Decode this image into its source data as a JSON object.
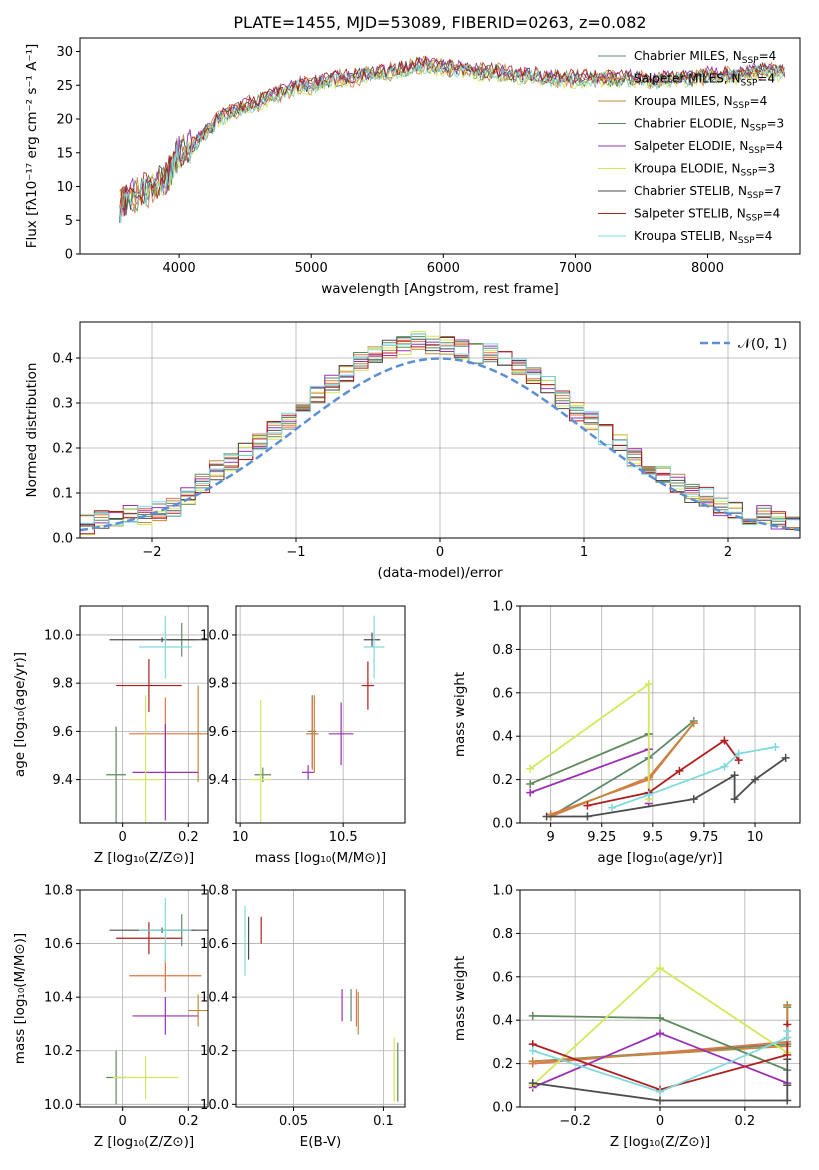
{
  "figure_title": "PLATE=1455, MJD=53089, FIBERID=0263, z=0.082",
  "series": [
    {
      "key": "cm",
      "name": "Chabrier MILES, N",
      "sub": "SSP",
      "suffix": "=4",
      "color": "#5e8a6e"
    },
    {
      "key": "sm",
      "name": "Salpeter MILES, N",
      "sub": "SSP",
      "suffix": "=4",
      "color": "#e57349"
    },
    {
      "key": "km",
      "name": "Kroupa MILES, N",
      "sub": "SSP",
      "suffix": "=4",
      "color": "#c2893e"
    },
    {
      "key": "ce",
      "name": "Chabrier ELODIE, N",
      "sub": "SSP",
      "suffix": "=3",
      "color": "#5f8a5c"
    },
    {
      "key": "se",
      "name": "Salpeter ELODIE, N",
      "sub": "SSP",
      "suffix": "=4",
      "color": "#9b30b5"
    },
    {
      "key": "ke",
      "name": "Kroupa ELODIE, N",
      "sub": "SSP",
      "suffix": "=3",
      "color": "#d4e85c"
    },
    {
      "key": "cs",
      "name": "Chabrier STELIB, N",
      "sub": "SSP",
      "suffix": "=7",
      "color": "#4d4d4d"
    },
    {
      "key": "ss",
      "name": "Salpeter STELIB, N",
      "sub": "SSP",
      "suffix": "=4",
      "color": "#b01e1e"
    },
    {
      "key": "ks",
      "name": "Kroupa STELIB, N",
      "sub": "SSP",
      "suffix": "=4",
      "color": "#7fd9dd"
    }
  ],
  "chart_data": [
    {
      "id": "spectrum",
      "type": "line",
      "xlabel": "wavelength [Angstrom, rest frame]",
      "ylabel": "Flux [fλ10⁻¹⁷ erg cm⁻² s⁻¹ A⁻¹]",
      "xlim": [
        3250,
        8700
      ],
      "ylim": [
        0,
        32
      ],
      "xticks": [
        4000,
        5000,
        6000,
        7000,
        8000
      ],
      "yticks": [
        0,
        5,
        10,
        15,
        20,
        25,
        30
      ],
      "grid": false,
      "legend": "right",
      "x": [
        3550,
        3600,
        3700,
        3800,
        3900,
        3950,
        4000,
        4100,
        4200,
        4300,
        4400,
        4500,
        4600,
        4700,
        4800,
        4900,
        5000,
        5100,
        5200,
        5300,
        5400,
        5500,
        5600,
        5700,
        5800,
        5900,
        6000,
        6100,
        6200,
        6300,
        6400,
        6500,
        6600,
        6700,
        6800,
        6900,
        7000,
        7100,
        7200,
        7300,
        7400,
        7500,
        7600,
        7700,
        7800,
        7900,
        8000,
        8100,
        8200,
        8300,
        8400,
        8500,
        8600
      ],
      "y": [
        7,
        8,
        9,
        10,
        11,
        13,
        15,
        16,
        18,
        20,
        21,
        22,
        22.5,
        23.5,
        24,
        25,
        25,
        25.5,
        26,
        26,
        26.5,
        27,
        27,
        27.5,
        28,
        28,
        27.5,
        27.5,
        27,
        27,
        27,
        26.5,
        26.5,
        26.5,
        26,
        26,
        26,
        26,
        26,
        26,
        26,
        26,
        25.5,
        26,
        26,
        26,
        26.5,
        26.5,
        26.5,
        27,
        27,
        27,
        27
      ]
    },
    {
      "id": "residuals",
      "type": "histogram",
      "xlabel": "(data-model)/error",
      "ylabel": "Normed distribution",
      "xlim": [
        -2.5,
        2.5
      ],
      "ylim": [
        0,
        0.48
      ],
      "xticks": [
        -2,
        -1,
        0,
        1,
        2
      ],
      "yticks": [
        0.0,
        0.1,
        0.2,
        0.3,
        0.4
      ],
      "grid": true,
      "legend": "top-right",
      "reference_label": "𝒩(0, 1)",
      "reference_color": "#5b8fd6",
      "bin_width": 0.1,
      "values": [
        0.03,
        0.04,
        0.04,
        0.05,
        0.05,
        0.06,
        0.07,
        0.09,
        0.12,
        0.15,
        0.17,
        0.19,
        0.21,
        0.24,
        0.26,
        0.29,
        0.32,
        0.34,
        0.37,
        0.39,
        0.41,
        0.42,
        0.43,
        0.44,
        0.43,
        0.43,
        0.42,
        0.41,
        0.41,
        0.4,
        0.38,
        0.36,
        0.34,
        0.31,
        0.28,
        0.26,
        0.23,
        0.21,
        0.18,
        0.16,
        0.14,
        0.12,
        0.1,
        0.09,
        0.07,
        0.06,
        0.05,
        0.05,
        0.04,
        0.03
      ]
    },
    {
      "id": "z-age",
      "type": "errorbar",
      "xlabel": "Z [log₁₀(Z/Z⊙)]",
      "ylabel": "age  [log₁₀(age/yr)]",
      "xlim": [
        -0.13,
        0.26
      ],
      "ylim": [
        9.22,
        10.12
      ],
      "xticks": [
        0.0,
        0.2
      ],
      "yticks": [
        9.4,
        9.6,
        9.8,
        10.0
      ],
      "grid": true,
      "points": [
        {
          "s": "cm",
          "x": 0.18,
          "y": 9.98,
          "xe": 0.04,
          "ye": 0.07
        },
        {
          "s": "sm",
          "x": 0.13,
          "y": 9.59,
          "xe": 0.11,
          "ye": 0.15
        },
        {
          "s": "km",
          "x": 0.23,
          "y": 9.59,
          "xe": 0.03,
          "ye": 0.2
        },
        {
          "s": "ce",
          "x": -0.02,
          "y": 9.42,
          "xe": 0.03,
          "ye": 0.2
        },
        {
          "s": "se",
          "x": 0.13,
          "y": 9.43,
          "xe": 0.1,
          "ye": 0.2
        },
        {
          "s": "ke",
          "x": 0.07,
          "y": 9.4,
          "xe": 0.05,
          "ye": 0.35
        },
        {
          "s": "cs",
          "x": 0.12,
          "y": 9.98,
          "xe": 0.16,
          "ye": 0.01
        },
        {
          "s": "ss",
          "x": 0.08,
          "y": 9.79,
          "xe": 0.1,
          "ye": 0.11
        },
        {
          "s": "ks",
          "x": 0.13,
          "y": 9.95,
          "xe": 0.08,
          "ye": 0.13
        }
      ]
    },
    {
      "id": "mass-age",
      "type": "errorbar",
      "xlabel": "mass [log₁₀(M/M⊙)]",
      "ylabel": "",
      "xlim": [
        9.98,
        10.8
      ],
      "ylim": [
        9.22,
        10.12
      ],
      "xticks": [
        10.0,
        10.5
      ],
      "yticks": [
        9.4,
        9.6,
        9.8,
        10.0
      ],
      "grid": true,
      "points": [
        {
          "s": "cm",
          "x": 10.35,
          "y": 9.6,
          "xe": 0.02,
          "ye": 0.15
        },
        {
          "s": "sm",
          "x": 10.35,
          "y": 9.59,
          "xe": 0.03,
          "ye": 0.15
        },
        {
          "s": "km",
          "x": 10.36,
          "y": 9.59,
          "xe": 0.02,
          "ye": 0.16
        },
        {
          "s": "ce",
          "x": 10.11,
          "y": 9.42,
          "xe": 0.04,
          "ye": 0.03
        },
        {
          "s": "se",
          "x": 10.33,
          "y": 9.43,
          "xe": 0.03,
          "ye": 0.03
        },
        {
          "s": "ke",
          "x": 10.1,
          "y": 9.4,
          "xe": 0.05,
          "ye": 0.33
        },
        {
          "s": "cs",
          "x": 10.64,
          "y": 9.98,
          "xe": 0.04,
          "ye": 0.03
        },
        {
          "s": "ss",
          "x": 10.62,
          "y": 9.79,
          "xe": 0.03,
          "ye": 0.1
        },
        {
          "s": "ks",
          "x": 10.65,
          "y": 9.95,
          "xe": 0.05,
          "ye": 0.13
        },
        {
          "s": "se",
          "x": 10.49,
          "y": 9.59,
          "xe": 0.06,
          "ye": 0.13
        }
      ]
    },
    {
      "id": "age-weight",
      "type": "line",
      "xlabel": "age  [log₁₀(age/yr)]",
      "ylabel": "mass weight",
      "xlim": [
        8.85,
        10.22
      ],
      "ylim": [
        0,
        1
      ],
      "xticks": [
        9.0,
        9.25,
        9.5,
        9.75,
        10.0
      ],
      "yticks": [
        0.0,
        0.2,
        0.4,
        0.6,
        0.8,
        1.0
      ],
      "grid": true,
      "series": [
        {
          "s": "cm",
          "x": [
            9.0,
            9.48,
            9.7
          ],
          "y": [
            0.03,
            0.3,
            0.47
          ]
        },
        {
          "s": "sm",
          "x": [
            9.0,
            9.48,
            9.7
          ],
          "y": [
            0.04,
            0.2,
            0.46
          ]
        },
        {
          "s": "km",
          "x": [
            9.0,
            9.48,
            9.7
          ],
          "y": [
            0.03,
            0.21,
            0.46
          ]
        },
        {
          "s": "ce",
          "x": [
            8.9,
            9.48,
            9.48
          ],
          "y": [
            0.18,
            0.41,
            0.41
          ]
        },
        {
          "s": "se",
          "x": [
            8.9,
            9.48,
            9.48
          ],
          "y": [
            0.14,
            0.34,
            0.09
          ]
        },
        {
          "s": "ke",
          "x": [
            8.9,
            9.48,
            9.48
          ],
          "y": [
            0.25,
            0.64,
            0.11
          ]
        },
        {
          "s": "cs",
          "x": [
            8.98,
            9.18,
            9.7,
            9.9,
            9.9,
            10.0,
            10.15
          ],
          "y": [
            0.03,
            0.03,
            0.11,
            0.22,
            0.11,
            0.2,
            0.3
          ]
        },
        {
          "s": "ss",
          "x": [
            9.18,
            9.48,
            9.63,
            9.85,
            9.92
          ],
          "y": [
            0.08,
            0.14,
            0.24,
            0.38,
            0.29
          ]
        },
        {
          "s": "ks",
          "x": [
            9.3,
            9.48,
            9.85,
            9.92,
            10.1
          ],
          "y": [
            0.07,
            0.13,
            0.26,
            0.32,
            0.35
          ]
        }
      ]
    },
    {
      "id": "z-mass",
      "type": "errorbar",
      "xlabel": "Z [log₁₀(Z/Z⊙)]",
      "ylabel": "mass [log₁₀(M/M⊙)]",
      "xlim": [
        -0.13,
        0.26
      ],
      "ylim": [
        9.99,
        10.8
      ],
      "xticks": [
        0.0,
        0.2
      ],
      "yticks": [
        10.0,
        10.2,
        10.4,
        10.6,
        10.8
      ],
      "grid": true,
      "points": [
        {
          "s": "cm",
          "x": 0.18,
          "y": 10.65,
          "xe": 0.04,
          "ye": 0.06
        },
        {
          "s": "sm",
          "x": 0.13,
          "y": 10.48,
          "xe": 0.11,
          "ye": 0.06
        },
        {
          "s": "km",
          "x": 0.23,
          "y": 10.35,
          "xe": 0.03,
          "ye": 0.06
        },
        {
          "s": "ce",
          "x": -0.02,
          "y": 10.1,
          "xe": 0.03,
          "ye": 0.1
        },
        {
          "s": "se",
          "x": 0.13,
          "y": 10.33,
          "xe": 0.1,
          "ye": 0.07
        },
        {
          "s": "ke",
          "x": 0.07,
          "y": 10.1,
          "xe": 0.1,
          "ye": 0.08
        },
        {
          "s": "cs",
          "x": 0.12,
          "y": 10.65,
          "xe": 0.16,
          "ye": 0.01
        },
        {
          "s": "ss",
          "x": 0.08,
          "y": 10.62,
          "xe": 0.1,
          "ye": 0.06
        },
        {
          "s": "ks",
          "x": 0.13,
          "y": 10.65,
          "xe": 0.08,
          "ye": 0.12
        }
      ]
    },
    {
      "id": "ebv-mass",
      "type": "errorbar",
      "xlabel": "E(B-V)",
      "ylabel": "",
      "xlim": [
        0.018,
        0.112
      ],
      "ylim": [
        9.99,
        10.8
      ],
      "xticks": [
        0.05,
        0.1
      ],
      "yticks": [
        10.0,
        10.2,
        10.4,
        10.6,
        10.8
      ],
      "grid": true,
      "points": [
        {
          "s": "cm",
          "x": 0.082,
          "y": 10.37,
          "xe": 0,
          "ye": 0.06
        },
        {
          "s": "sm",
          "x": 0.085,
          "y": 10.36,
          "xe": 0,
          "ye": 0.07
        },
        {
          "s": "km",
          "x": 0.086,
          "y": 10.34,
          "xe": 0,
          "ye": 0.08
        },
        {
          "s": "ce",
          "x": 0.108,
          "y": 10.12,
          "xe": 0,
          "ye": 0.11
        },
        {
          "s": "se",
          "x": 0.077,
          "y": 10.37,
          "xe": 0,
          "ye": 0.06
        },
        {
          "s": "ke",
          "x": 0.106,
          "y": 10.13,
          "xe": 0,
          "ye": 0.12
        },
        {
          "s": "cs",
          "x": 0.025,
          "y": 10.62,
          "xe": 0,
          "ye": 0.08
        },
        {
          "s": "ss",
          "x": 0.032,
          "y": 10.65,
          "xe": 0,
          "ye": 0.05
        },
        {
          "s": "ks",
          "x": 0.023,
          "y": 10.61,
          "xe": 0,
          "ye": 0.13
        }
      ]
    },
    {
      "id": "z-weight",
      "type": "line",
      "xlabel": "Z [log₁₀(Z/Z⊙)]",
      "ylabel": "mass weight",
      "xlim": [
        -0.33,
        0.33
      ],
      "ylim": [
        0,
        1
      ],
      "xticks": [
        -0.2,
        0.0,
        0.2
      ],
      "yticks": [
        0.0,
        0.2,
        0.4,
        0.6,
        0.8,
        1.0
      ],
      "grid": true,
      "series": [
        {
          "s": "cm",
          "x": [
            -0.3,
            0.3,
            0.3
          ],
          "y": [
            0.21,
            0.29,
            0.46
          ]
        },
        {
          "s": "sm",
          "x": [
            -0.3,
            0.3,
            0.3
          ],
          "y": [
            0.2,
            0.3,
            0.47
          ]
        },
        {
          "s": "km",
          "x": [
            -0.3,
            0.3,
            0.3
          ],
          "y": [
            0.21,
            0.28,
            0.47
          ]
        },
        {
          "s": "ce",
          "x": [
            -0.3,
            0.0,
            0.3
          ],
          "y": [
            0.42,
            0.41,
            0.17
          ]
        },
        {
          "s": "se",
          "x": [
            -0.3,
            0.0,
            0.3
          ],
          "y": [
            0.09,
            0.34,
            0.11
          ]
        },
        {
          "s": "ke",
          "x": [
            -0.3,
            0.0,
            0.3
          ],
          "y": [
            0.1,
            0.64,
            0.25
          ]
        },
        {
          "s": "cs",
          "x": [
            -0.3,
            0.0,
            0.3,
            0.3,
            0.3
          ],
          "y": [
            0.11,
            0.03,
            0.03,
            0.1,
            0.22
          ]
        },
        {
          "s": "ss",
          "x": [
            -0.3,
            0.0,
            0.3,
            0.3
          ],
          "y": [
            0.29,
            0.08,
            0.24,
            0.38
          ]
        },
        {
          "s": "ks",
          "x": [
            -0.3,
            0.0,
            0.3,
            0.3
          ],
          "y": [
            0.26,
            0.07,
            0.32,
            0.35
          ]
        }
      ]
    }
  ]
}
